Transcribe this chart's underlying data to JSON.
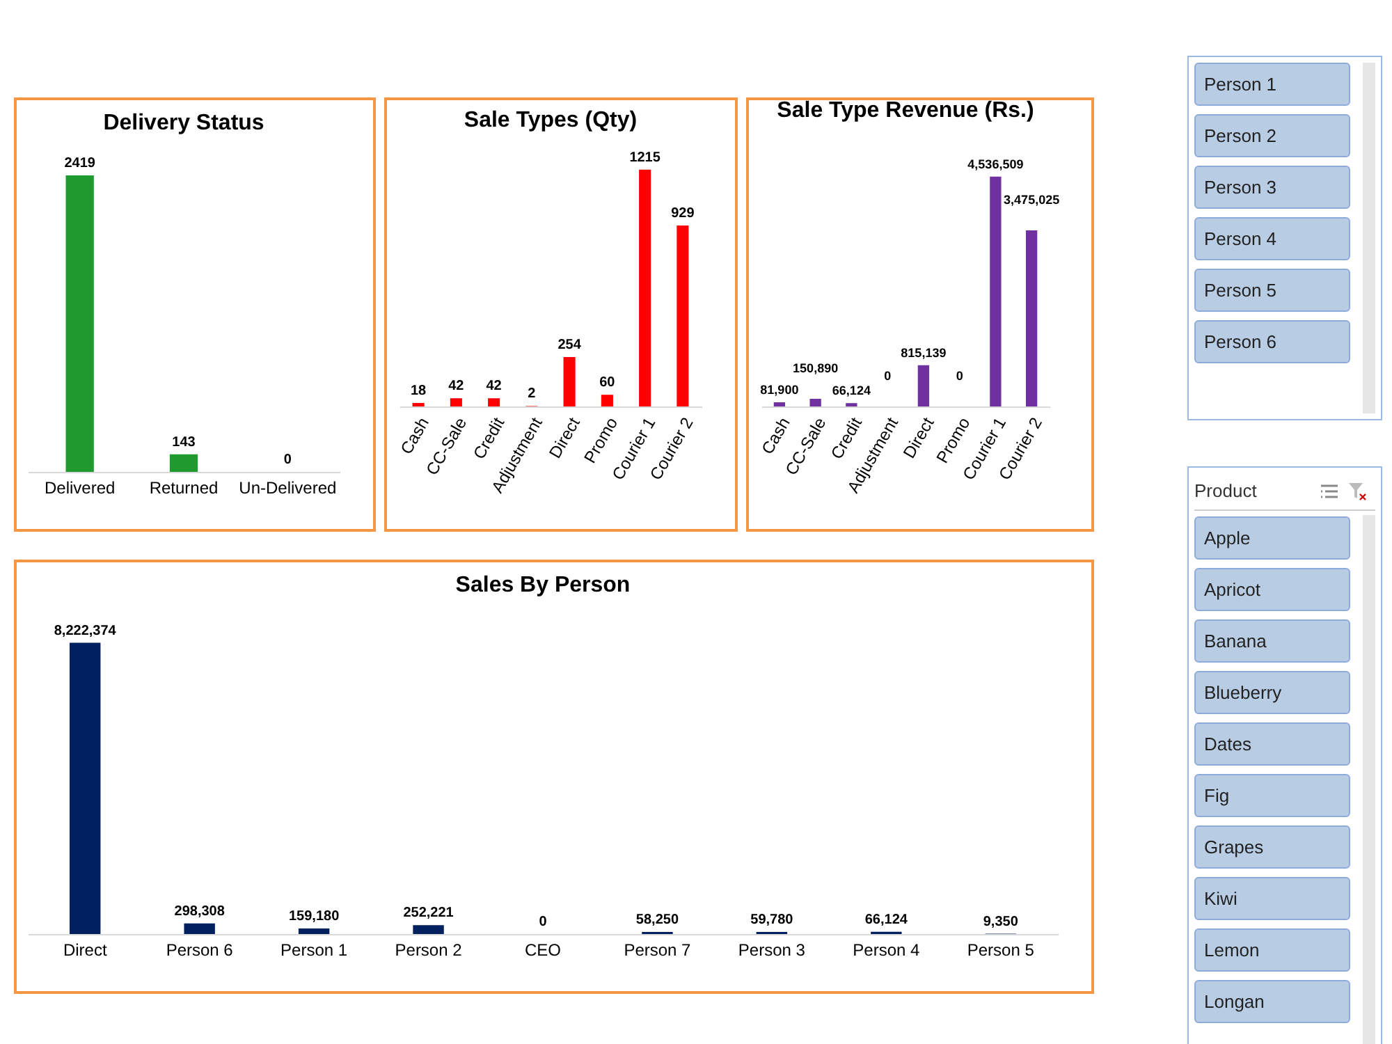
{
  "chart_data": [
    {
      "type": "bar",
      "title": "Delivery Status",
      "categories": [
        "Delivered",
        "Returned",
        "Un-Delivered"
      ],
      "values": [
        2419,
        143,
        0
      ],
      "color": "#1e9a2e",
      "value_labels": [
        "2419",
        "143",
        "0"
      ]
    },
    {
      "type": "bar",
      "title": "Sale Types (Qty)",
      "categories": [
        "Cash",
        "CC-Sale",
        "Credit",
        "Adjustment",
        "Direct",
        "Promo",
        "Courier 1",
        "Courier 2"
      ],
      "values": [
        18,
        42,
        42,
        2,
        254,
        60,
        1215,
        929
      ],
      "color": "#ff0000",
      "value_labels": [
        "18",
        "42",
        "42",
        "2",
        "254",
        "60",
        "1215",
        "929"
      ]
    },
    {
      "type": "bar",
      "title": "Sale Type Revenue (Rs.)",
      "categories": [
        "Cash",
        "CC-Sale",
        "Credit",
        "Adjustment",
        "Direct",
        "Promo",
        "Courier 1",
        "Courier 2"
      ],
      "values": [
        81900,
        150890,
        66124,
        0,
        815139,
        0,
        4536509,
        3475025
      ],
      "color": "#7030a0",
      "value_labels": [
        "81,900",
        "150,890",
        "66,124",
        "0",
        "815,139",
        "0",
        "4,536,509",
        "3,475,025"
      ]
    },
    {
      "type": "bar",
      "title": "Sales By Person",
      "categories": [
        "Direct",
        "Person 6",
        "Person 1",
        "Person 2",
        "CEO",
        "Person 7",
        "Person 3",
        "Person 4",
        "Person 5"
      ],
      "values": [
        8222374,
        298308,
        159180,
        252221,
        0,
        58250,
        59780,
        66124,
        9350
      ],
      "color": "#002060",
      "value_labels": [
        "8,222,374",
        "298,308",
        "159,180",
        "252,221",
        "0",
        "58,250",
        "59,780",
        "66,124",
        "9,350"
      ]
    },
    {
      "type": "other",
      "annotations": [
        "Person 1",
        "Person 2",
        "Person 3",
        "Person 4",
        "Person 5",
        "Person 6"
      ]
    },
    {
      "type": "other",
      "title": "Product",
      "annotations": [
        "Apple",
        "Apricot",
        "Banana",
        "Blueberry",
        "Dates",
        "Fig",
        "Grapes",
        "Kiwi",
        "Lemon",
        "Longan"
      ]
    }
  ]
}
